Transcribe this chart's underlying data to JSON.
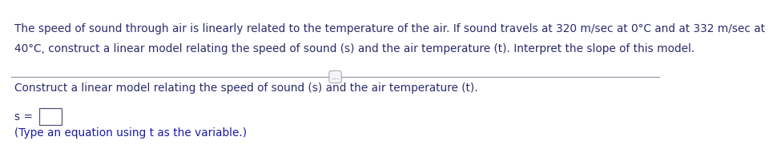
{
  "problem_text_line1": "The speed of sound through air is linearly related to the temperature of the air. If sound travels at 320 m/sec at 0°C and at 332 m/sec at",
  "problem_text_line2": "40°C, construct a linear model relating the speed of sound (s) and the air temperature (t). Interpret the slope of this model.",
  "divider_dots": "...",
  "question_text": "Construct a linear model relating the speed of sound (s) and the air temperature (t).",
  "equation_prefix": "s =",
  "hint_text": "(Type an equation using t as the variable.)",
  "text_color_dark": "#2b2b6b",
  "text_color_blue": "#1a1aaa",
  "background_color": "#ffffff",
  "divider_color": "#9999aa",
  "dots_color": "#666688",
  "font_size_problem": 9.8,
  "font_size_question": 9.8,
  "font_size_hint": 9.8,
  "font_size_dots": 7.5
}
